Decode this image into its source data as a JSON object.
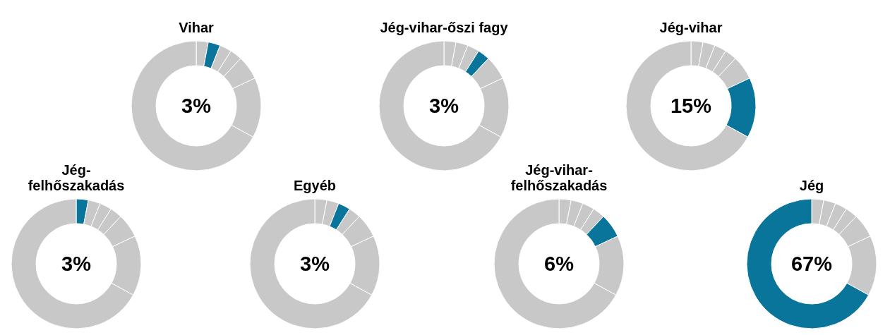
{
  "chart_data": [
    {
      "type": "donut",
      "title": "Vihar",
      "categories": [
        null,
        null,
        null,
        null,
        null,
        null,
        null
      ],
      "values": [
        3,
        3,
        3,
        3,
        6,
        15,
        67
      ],
      "colors": [
        "#c8c8c8",
        "#0a759b",
        "#c8c8c8",
        "#c8c8c8",
        "#c8c8c8",
        "#c8c8c8",
        "#c8c8c8"
      ],
      "annotations": [
        "3%"
      ]
    },
    {
      "type": "donut",
      "title": "Jég-vihar-őszi fagy",
      "categories": [
        null,
        null,
        null,
        null,
        null,
        null,
        null
      ],
      "values": [
        3,
        3,
        3,
        3,
        6,
        15,
        67
      ],
      "colors": [
        "#c8c8c8",
        "#c8c8c8",
        "#c8c8c8",
        "#0a759b",
        "#c8c8c8",
        "#c8c8c8",
        "#c8c8c8"
      ],
      "annotations": [
        "3%"
      ]
    },
    {
      "type": "donut",
      "title": "Jég-vihar",
      "categories": [
        null,
        null,
        null,
        null,
        null,
        null,
        null
      ],
      "values": [
        3,
        3,
        3,
        3,
        6,
        15,
        67
      ],
      "colors": [
        "#c8c8c8",
        "#c8c8c8",
        "#c8c8c8",
        "#c8c8c8",
        "#c8c8c8",
        "#0a759b",
        "#c8c8c8"
      ],
      "annotations": [
        "15%"
      ]
    },
    {
      "type": "donut",
      "title": "Jég-felhőszakadás",
      "categories": [
        null,
        null,
        null,
        null,
        null,
        null,
        null
      ],
      "values": [
        3,
        3,
        3,
        3,
        6,
        15,
        67
      ],
      "colors": [
        "#0a759b",
        "#c8c8c8",
        "#c8c8c8",
        "#c8c8c8",
        "#c8c8c8",
        "#c8c8c8",
        "#c8c8c8"
      ],
      "annotations": [
        "3%"
      ]
    },
    {
      "type": "donut",
      "title": "Egyéb",
      "categories": [
        null,
        null,
        null,
        null,
        null,
        null,
        null
      ],
      "values": [
        3,
        3,
        3,
        3,
        6,
        15,
        67
      ],
      "colors": [
        "#c8c8c8",
        "#c8c8c8",
        "#0a759b",
        "#c8c8c8",
        "#c8c8c8",
        "#c8c8c8",
        "#c8c8c8"
      ],
      "annotations": [
        "3%"
      ]
    },
    {
      "type": "donut",
      "title": "Jég-vihar-felhőszakadás",
      "categories": [
        null,
        null,
        null,
        null,
        null,
        null,
        null
      ],
      "values": [
        3,
        3,
        3,
        3,
        6,
        15,
        67
      ],
      "colors": [
        "#c8c8c8",
        "#c8c8c8",
        "#c8c8c8",
        "#c8c8c8",
        "#0a759b",
        "#c8c8c8",
        "#c8c8c8"
      ],
      "annotations": [
        "6%"
      ]
    },
    {
      "type": "donut",
      "title": "Jég",
      "categories": [
        null,
        null,
        null,
        null,
        null,
        null,
        null
      ],
      "values": [
        3,
        3,
        3,
        3,
        6,
        15,
        67
      ],
      "colors": [
        "#c8c8c8",
        "#c8c8c8",
        "#c8c8c8",
        "#c8c8c8",
        "#c8c8c8",
        "#c8c8c8",
        "#0a759b"
      ],
      "annotations": [
        "67%"
      ]
    }
  ]
}
